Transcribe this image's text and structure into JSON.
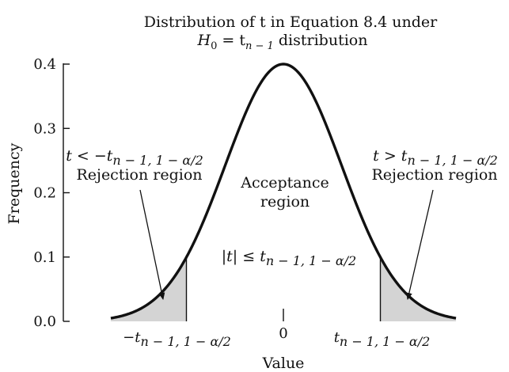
{
  "chart_data": {
    "type": "area",
    "title_line1": "Distribution of t in Equation 8.4 under",
    "title_line2": {
      "h": "H",
      "h_sub": "0",
      "mid": " = t",
      "mid_sub": "n − 1",
      "tail": " distribution"
    },
    "xlabel": "Value",
    "ylabel": "Frequency",
    "ylim": [
      0,
      0.4
    ],
    "xlim": [
      -4.5,
      4.5
    ],
    "critical_value": 2.5,
    "y_ticks": [
      {
        "value": 0.0,
        "label": "0.0"
      },
      {
        "value": 0.1,
        "label": "0.1"
      },
      {
        "value": 0.2,
        "label": "0.2"
      },
      {
        "value": 0.3,
        "label": "0.3"
      },
      {
        "value": 0.4,
        "label": "0.4"
      }
    ],
    "x_ticks": {
      "left": {
        "value": -2.5,
        "main": "−t",
        "sub": "n − 1, 1 − α/2"
      },
      "center": {
        "value": 0,
        "label": "0"
      },
      "right": {
        "value": 2.5,
        "main": "t",
        "sub": "n − 1, 1 − α/2"
      }
    },
    "regions": {
      "left_condition": {
        "main": "t < −t",
        "sub": "n − 1, 1 − α/2"
      },
      "left_name": "Rejection region",
      "right_condition": {
        "main": "t > t",
        "sub": "n − 1, 1 − α/2"
      },
      "right_name": "Rejection region",
      "accept_line1": "Acceptance",
      "accept_line2": "region",
      "accept_condition": {
        "main": "|t| ≤ t",
        "sub": "n − 1, 1 − α/2"
      }
    },
    "colors": {
      "curve": "#111111",
      "shade": "#d4d4d4"
    }
  }
}
